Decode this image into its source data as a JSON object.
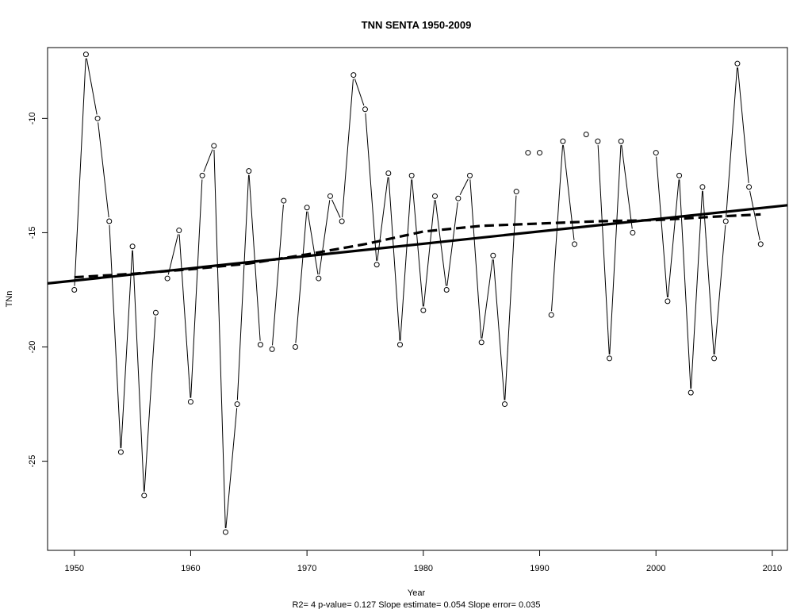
{
  "chart_data": {
    "type": "line",
    "title": "TNN   SENTA 1950-2009",
    "xlabel": "Year",
    "ylabel": "TNn",
    "subtitle": "R2= 4  p-value= 0.127  Slope estimate= 0.054  Slope error= 0.035",
    "xlim": [
      1947.7,
      2011.3
    ],
    "ylim": [
      -28.9,
      -6.9
    ],
    "xticks": [
      1950,
      1960,
      1970,
      1980,
      1990,
      2000,
      2010
    ],
    "xtick_labels": [
      "1950",
      "1960",
      "1970",
      "1980",
      "1990",
      "2000",
      "2010"
    ],
    "yticks": [
      -25,
      -20,
      -15,
      -10
    ],
    "ytick_labels": [
      "-25",
      "-20",
      "-15",
      "-10"
    ],
    "grid": false,
    "series": [
      {
        "style": "points-with-line-segments",
        "x": [
          1950,
          1951,
          1952,
          1953,
          1954,
          1955,
          1956,
          1957,
          1958,
          1959,
          1960,
          1961,
          1962,
          1963,
          1964,
          1965,
          1966,
          1967,
          1968,
          1969,
          1970,
          1971,
          1972,
          1973,
          1974,
          1975,
          1976,
          1977,
          1978,
          1979,
          1980,
          1981,
          1982,
          1983,
          1984,
          1985,
          1986,
          1987,
          1988,
          1989,
          1990,
          1991,
          1992,
          1993,
          1994,
          1995,
          1996,
          1997,
          1998,
          1999,
          2000,
          2001,
          2002,
          2003,
          2004,
          2005,
          2006,
          2007,
          2008,
          2009
        ],
        "y": [
          -17.5,
          -7.2,
          -10.0,
          -14.5,
          -24.6,
          -15.6,
          -26.5,
          -18.5,
          -17.0,
          -14.9,
          -22.4,
          -12.5,
          -11.2,
          -28.1,
          -22.5,
          -12.3,
          -19.9,
          -20.1,
          -13.6,
          -20.0,
          -13.9,
          -17.0,
          -13.4,
          -14.5,
          -8.1,
          -9.6,
          -16.4,
          -12.4,
          -19.9,
          -12.5,
          -18.4,
          -13.4,
          -17.5,
          -13.5,
          -12.5,
          -19.8,
          -16.0,
          -22.5,
          -13.2,
          -11.5,
          null,
          -18.6,
          -11.0,
          -15.5,
          -10.7,
          -11.0,
          -20.5,
          -11.0,
          -15.0,
          null,
          -11.5,
          -18.0,
          -12.5,
          -22.0,
          -13.0,
          -20.5,
          -14.5,
          -7.6,
          -13.0,
          -15.5
        ],
        "extra_points": [
          {
            "x": 1990,
            "y": -11.5
          }
        ],
        "gaps": [
          [
            1957,
            1958
          ],
          [
            1966,
            1967
          ],
          [
            1968,
            1969
          ],
          [
            1988,
            1989
          ],
          [
            1989,
            1990
          ],
          [
            1993,
            1994
          ],
          [
            1994,
            1995
          ],
          [
            1999,
            2000
          ]
        ]
      },
      {
        "style": "solid-thick",
        "kind": "linear trend",
        "x": [
          1947.7,
          2011.3
        ],
        "y": [
          -17.22,
          -13.8
        ]
      },
      {
        "style": "dashed-thick",
        "kind": "smooth",
        "x": [
          1950,
          1955,
          1960,
          1965,
          1970,
          1975,
          1980,
          1985,
          1990,
          1995,
          2000,
          2005,
          2009
        ],
        "y": [
          -16.95,
          -16.8,
          -16.6,
          -16.35,
          -15.95,
          -15.5,
          -14.95,
          -14.7,
          -14.6,
          -14.5,
          -14.45,
          -14.3,
          -14.2
        ]
      }
    ]
  }
}
